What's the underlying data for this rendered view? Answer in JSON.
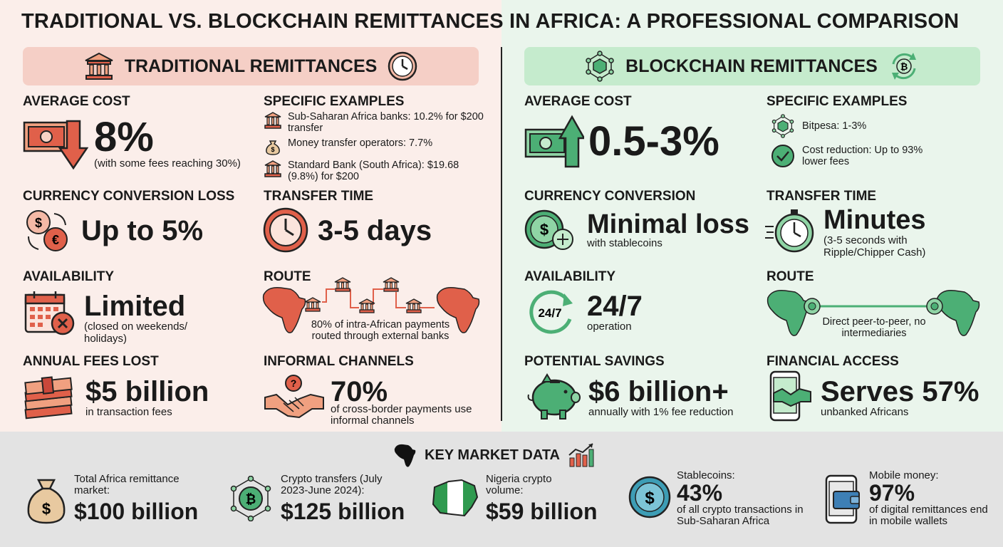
{
  "title": "TRADITIONAL VS. BLOCKCHAIN REMITTANCES IN AFRICA: A PROFESSIONAL COMPARISON",
  "colors": {
    "traditional_bg": "#fbeeea",
    "traditional_accent": "#e0604a",
    "blockchain_bg": "#eaf5ec",
    "blockchain_accent": "#4caf75",
    "bottom_bg": "#e3e3e3"
  },
  "traditional": {
    "header": "TRADITIONAL REMITTANCES",
    "header_icons": [
      "bank-icon",
      "clock-icon"
    ],
    "average_cost": {
      "title": "AVERAGE COST",
      "value": "8%",
      "note": "(with some fees reaching 30%)"
    },
    "specific_examples": {
      "title": "SPECIFIC EXAMPLES",
      "items": [
        {
          "icon": "bank-icon",
          "text": "Sub-Saharan Africa banks: 10.2% for $200 transfer"
        },
        {
          "icon": "money-bag-icon",
          "text": "Money transfer operators: 7.7%"
        },
        {
          "icon": "bank-icon",
          "text": "Standard Bank (South Africa): $19.68 (9.8%) for $200"
        }
      ]
    },
    "currency": {
      "title": "CURRENCY CONVERSION LOSS",
      "value": "Up to 5%"
    },
    "transfer_time": {
      "title": "TRANSFER TIME",
      "value": "3-5 days"
    },
    "availability": {
      "title": "AVAILABILITY",
      "value": "Limited",
      "note": "(closed on weekends/ holidays)"
    },
    "route": {
      "title": "ROUTE",
      "note": "80% of intra-African payments routed through external banks"
    },
    "annual_fees": {
      "title": "ANNUAL FEES LOST",
      "value": "$5 billion",
      "note": "in transaction fees"
    },
    "informal": {
      "title": "INFORMAL CHANNELS",
      "value": "70%",
      "note": "of cross-border payments use informal channels"
    }
  },
  "blockchain": {
    "header": "BLOCKCHAIN REMITTANCES",
    "header_icons": [
      "blockchain-cube-icon",
      "bitcoin-cycle-icon"
    ],
    "average_cost": {
      "title": "AVERAGE COST",
      "value": "0.5-3%"
    },
    "specific_examples": {
      "title": "SPECIFIC EXAMPLES",
      "items": [
        {
          "icon": "blockchain-cube-icon",
          "text": "Bitpesa: 1-3%"
        },
        {
          "icon": "check-circle-icon",
          "text": "Cost reduction: Up to 93% lower fees"
        }
      ]
    },
    "currency": {
      "title": "CURRENCY CONVERSION",
      "value": "Minimal loss",
      "note": "with stablecoins"
    },
    "transfer_time": {
      "title": "TRANSFER TIME",
      "value": "Minutes",
      "note": "(3-5 seconds with Ripple/Chipper Cash)"
    },
    "availability": {
      "title": "AVAILABILITY",
      "value": "24/7",
      "note": "operation",
      "icon_text": "24/7"
    },
    "route": {
      "title": "ROUTE",
      "note": "Direct peer-to-peer, no intermediaries"
    },
    "savings": {
      "title": "POTENTIAL SAVINGS",
      "value": "$6 billion+",
      "note": "annually with 1% fee reduction"
    },
    "financial_access": {
      "title": "FINANCIAL ACCESS",
      "value": "Serves 57%",
      "note": "unbanked Africans"
    }
  },
  "key_market": {
    "title": "KEY MARKET DATA",
    "items": [
      {
        "icon": "money-bag-icon",
        "label": "Total Africa remittance market:",
        "value": "$100 billion",
        "note": ""
      },
      {
        "icon": "crypto-network-icon",
        "label": "Crypto transfers (July 2023-June 2024):",
        "value": "$125 billion",
        "note": ""
      },
      {
        "icon": "nigeria-map-icon",
        "label": "Nigeria crypto volume:",
        "value": "$59 billion",
        "note": ""
      },
      {
        "icon": "stablecoin-icon",
        "label": "Stablecoins:",
        "value": "43%",
        "note": "of all crypto transactions in Sub-Saharan Africa"
      },
      {
        "icon": "mobile-wallet-icon",
        "label": "Mobile money:",
        "value": "97%",
        "note": "of digital remittances end in mobile wallets"
      }
    ]
  }
}
